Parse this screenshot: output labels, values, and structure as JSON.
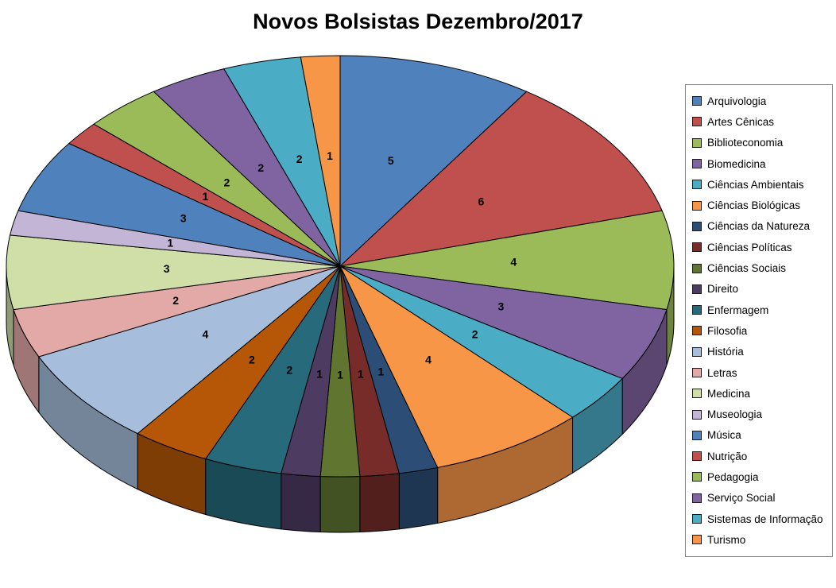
{
  "title": "Novos Bolsistas Dezembro/2017",
  "chart_data": {
    "type": "pie",
    "effect": "3d",
    "title": "Novos Bolsistas Dezembro/2017",
    "legend_position": "right",
    "data_labels": "value",
    "start_angle_deg": -90,
    "direction": "clockwise",
    "total": 53,
    "categories": [
      "Arquivologia",
      "Artes Cênicas",
      "Biblioteconomia",
      "Biomedicina",
      "Ciências Ambientais",
      "Ciências Biológicas",
      "Ciências da Natureza",
      "Ciências Políticas",
      "Ciências Sociais",
      "Direito",
      "Enfermagem",
      "Filosofia",
      "História",
      "Letras",
      "Medicina",
      "Museologia",
      "Música",
      "Nutrição",
      "Pedagogia",
      "Serviço Social",
      "Sistemas de Informação",
      "Turismo"
    ],
    "values": [
      5,
      6,
      4,
      3,
      2,
      4,
      1,
      1,
      1,
      1,
      2,
      2,
      4,
      2,
      3,
      1,
      3,
      1,
      2,
      2,
      2,
      1
    ],
    "colors": [
      "#4F81BD",
      "#C0504D",
      "#9BBB59",
      "#8064A2",
      "#4BACC6",
      "#F79646",
      "#2C4D75",
      "#772C2A",
      "#5F7530",
      "#4D3B62",
      "#276A7C",
      "#B65708",
      "#A6BDDB",
      "#E2A9A7",
      "#CFDFA7",
      "#C3B5D5",
      "#4F81BD",
      "#C0504D",
      "#9BBB59",
      "#8064A2",
      "#4BACC6",
      "#F79646"
    ]
  }
}
